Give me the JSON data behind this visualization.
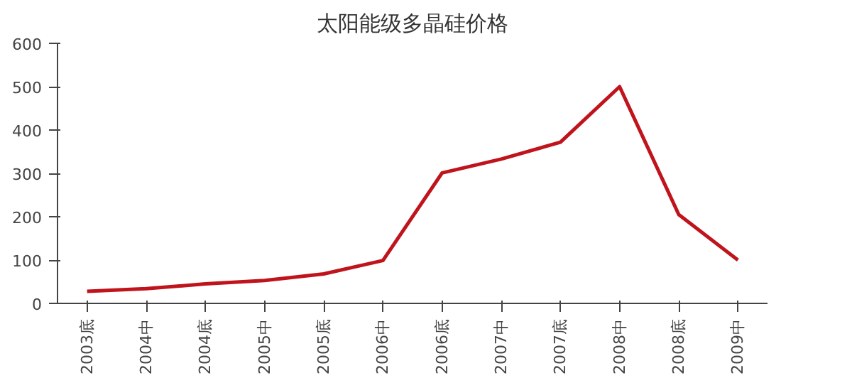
{
  "chart_data": {
    "type": "line",
    "title": "太阳能级多晶硅价格",
    "categories": [
      "2003底",
      "2004中",
      "2004底",
      "2005中",
      "2005底",
      "2006中",
      "2006底",
      "2007中",
      "2007底",
      "2008中",
      "2008底",
      "2009中"
    ],
    "series": [
      {
        "color": "#c0141c",
        "values": [
          28,
          34,
          45,
          53,
          68,
          99,
          301,
          333,
          372,
          500,
          205,
          100
        ]
      }
    ],
    "ylim": [
      0,
      600
    ],
    "yticks": [
      0,
      100,
      200,
      300,
      400,
      500,
      600
    ],
    "grid": false,
    "marker": "none",
    "line_style": "solid"
  }
}
